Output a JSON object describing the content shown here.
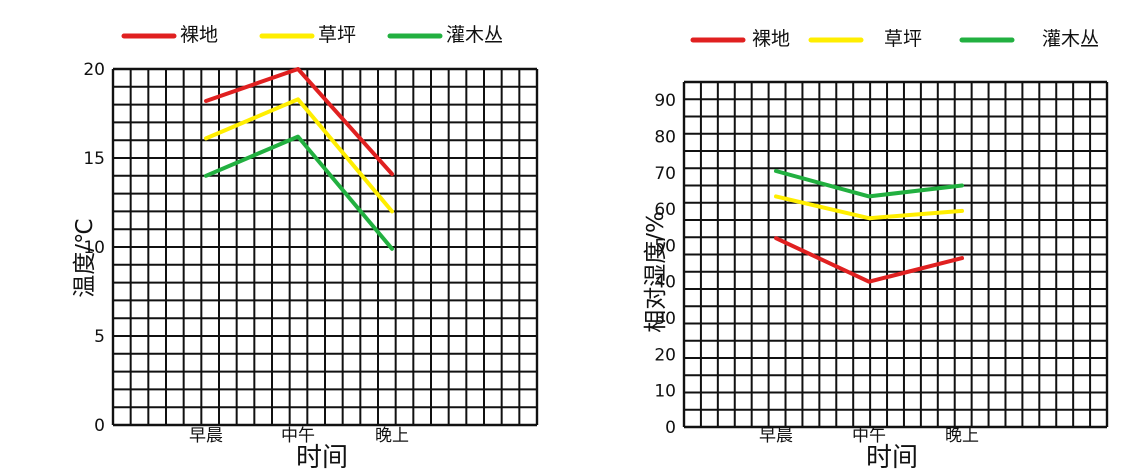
{
  "chart_data": [
    {
      "type": "line",
      "categories": [
        "早晨",
        "中午",
        "晚上"
      ],
      "series": [
        {
          "name": "裸地",
          "color": "#e02020",
          "values": [
            18.2,
            20.0,
            14.1
          ]
        },
        {
          "name": "草坪",
          "color": "#ffee00",
          "values": [
            16.1,
            18.3,
            12.0
          ]
        },
        {
          "name": "灌木丛",
          "color": "#22b040",
          "values": [
            14.0,
            16.2,
            9.9
          ]
        }
      ],
      "xlabel": "时间",
      "ylabel": "温度/℃",
      "ylim": [
        0,
        20
      ],
      "yticks": [
        "0",
        "5",
        "10",
        "15",
        "20"
      ],
      "grid": true,
      "legend": "top"
    },
    {
      "type": "line",
      "categories": [
        "早晨",
        "中午",
        "晚上"
      ],
      "series": [
        {
          "name": "裸地",
          "color": "#e02020",
          "values": [
            52,
            40,
            46.5
          ]
        },
        {
          "name": "草坪",
          "color": "#ffee00",
          "values": [
            63.5,
            57.5,
            59.5
          ]
        },
        {
          "name": "灌木丛",
          "color": "#22b040",
          "values": [
            70.5,
            63.5,
            66.5
          ]
        }
      ],
      "xlabel": "时间",
      "ylabel": "相对湿度/%",
      "ylim": [
        0,
        95
      ],
      "yticks": [
        "0",
        "10",
        "20",
        "30",
        "40",
        "50",
        "60",
        "70",
        "80",
        "90"
      ],
      "grid": true,
      "legend": "top"
    }
  ]
}
